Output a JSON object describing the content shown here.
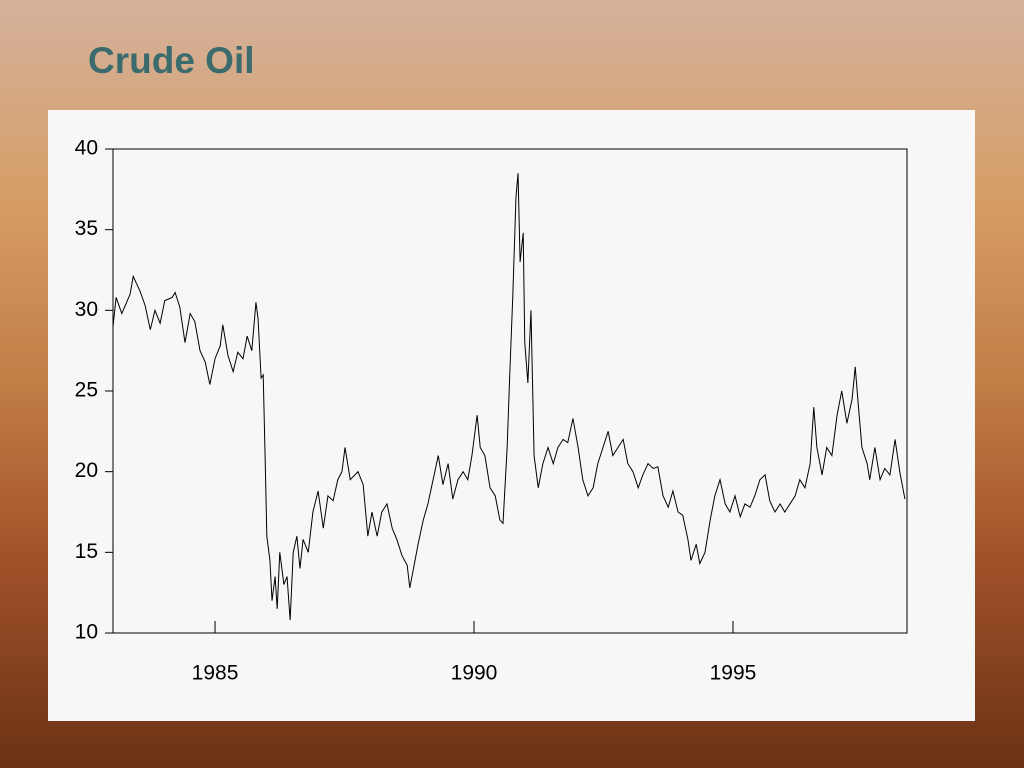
{
  "chart_data": {
    "type": "line",
    "title": "Crude Oil",
    "x": [
      1983.03,
      1983.09,
      1983.2,
      1983.36,
      1983.42,
      1983.55,
      1983.65,
      1983.75,
      1983.84,
      1983.94,
      1984.03,
      1984.17,
      1984.23,
      1984.32,
      1984.42,
      1984.52,
      1984.61,
      1984.71,
      1984.81,
      1984.9,
      1985.0,
      1985.1,
      1985.15,
      1985.25,
      1985.35,
      1985.44,
      1985.54,
      1985.62,
      1985.71,
      1985.79,
      1985.83,
      1985.89,
      1985.93,
      1985.97,
      1986.0,
      1986.06,
      1986.1,
      1986.16,
      1986.2,
      1986.25,
      1986.33,
      1986.39,
      1986.45,
      1986.51,
      1986.58,
      1986.64,
      1986.7,
      1986.8,
      1986.89,
      1986.99,
      1987.09,
      1987.18,
      1987.28,
      1987.37,
      1987.45,
      1987.51,
      1987.61,
      1987.7,
      1987.76,
      1987.86,
      1987.95,
      1988.03,
      1988.13,
      1988.22,
      1988.32,
      1988.42,
      1988.51,
      1988.61,
      1988.71,
      1988.76,
      1988.82,
      1988.92,
      1989.02,
      1989.11,
      1989.21,
      1989.31,
      1989.4,
      1989.5,
      1989.59,
      1989.69,
      1989.79,
      1989.88,
      1989.96,
      1990.06,
      1990.12,
      1990.21,
      1990.31,
      1990.41,
      1990.5,
      1990.56,
      1990.64,
      1990.69,
      1990.75,
      1990.81,
      1990.85,
      1990.89,
      1990.95,
      1990.98,
      1991.04,
      1991.1,
      1991.16,
      1991.24,
      1991.33,
      1991.43,
      1991.53,
      1991.62,
      1991.72,
      1991.81,
      1991.91,
      1992.01,
      1992.1,
      1992.2,
      1992.3,
      1992.39,
      1992.49,
      1992.59,
      1992.68,
      1992.78,
      1992.88,
      1992.97,
      1993.07,
      1993.17,
      1993.26,
      1993.36,
      1993.46,
      1993.55,
      1993.65,
      1993.75,
      1993.84,
      1993.94,
      1994.03,
      1994.13,
      1994.19,
      1994.29,
      1994.36,
      1994.46,
      1994.56,
      1994.65,
      1994.75,
      1994.85,
      1994.94,
      1995.04,
      1995.14,
      1995.23,
      1995.33,
      1995.42,
      1995.52,
      1995.62,
      1995.71,
      1995.81,
      1995.91,
      1996.0,
      1996.1,
      1996.2,
      1996.29,
      1996.39,
      1996.49,
      1996.56,
      1996.62,
      1996.72,
      1996.81,
      1996.91,
      1997.01,
      1997.1,
      1997.2,
      1997.3,
      1997.36,
      1997.41,
      1997.49,
      1997.59,
      1997.64,
      1997.74,
      1997.84,
      1997.93,
      1998.03,
      1998.13,
      1998.22,
      1998.32
    ],
    "series": [
      {
        "color": "#000000",
        "values": [
          29.0,
          30.8,
          29.8,
          31.0,
          32.1,
          31.2,
          30.3,
          28.8,
          30.0,
          29.2,
          30.6,
          30.8,
          31.1,
          30.2,
          28.0,
          29.8,
          29.3,
          27.5,
          26.8,
          25.4,
          27.0,
          27.8,
          29.1,
          27.2,
          26.2,
          27.4,
          27.0,
          28.4,
          27.5,
          30.5,
          29.5,
          25.8,
          26.0,
          20.5,
          16.0,
          14.5,
          12.0,
          13.5,
          11.5,
          15.0,
          13.0,
          13.5,
          10.8,
          15.0,
          16.0,
          14.0,
          15.8,
          15.0,
          17.5,
          18.8,
          16.5,
          18.5,
          18.2,
          19.5,
          20.0,
          21.5,
          19.5,
          19.8,
          20.0,
          19.2,
          16.0,
          17.5,
          16.0,
          17.5,
          18.0,
          16.5,
          15.8,
          14.8,
          14.2,
          12.8,
          13.8,
          15.5,
          17.0,
          18.0,
          19.5,
          21.0,
          19.2,
          20.5,
          18.3,
          19.5,
          20.0,
          19.5,
          21.0,
          23.5,
          21.5,
          21.0,
          19.0,
          18.5,
          17.0,
          16.8,
          21.5,
          26.0,
          31.0,
          37.0,
          38.5,
          33.0,
          34.8,
          28.0,
          25.5,
          30.0,
          21.0,
          19.0,
          20.5,
          21.5,
          20.5,
          21.5,
          22.0,
          21.8,
          23.3,
          21.5,
          19.5,
          18.5,
          19.0,
          20.5,
          21.5,
          22.5,
          21.0,
          21.5,
          22.0,
          20.5,
          20.0,
          19.0,
          19.8,
          20.5,
          20.2,
          20.3,
          18.5,
          17.8,
          18.8,
          17.5,
          17.3,
          15.8,
          14.5,
          15.5,
          14.3,
          15.0,
          17.0,
          18.5,
          19.5,
          18.0,
          17.5,
          18.5,
          17.2,
          18.0,
          17.8,
          18.5,
          19.5,
          19.8,
          18.2,
          17.5,
          18.0,
          17.5,
          18.0,
          18.5,
          19.5,
          19.0,
          20.5,
          24.0,
          21.5,
          19.8,
          21.5,
          21.0,
          23.5,
          25.0,
          23.0,
          24.5,
          26.5,
          24.5,
          21.5,
          20.5,
          19.5,
          21.5,
          19.5,
          20.2,
          19.8,
          22.0,
          20.0,
          18.3
        ]
      }
    ],
    "xlim": [
      1983.03,
      1998.36
    ],
    "xticks": [
      1985,
      1990,
      1995
    ],
    "ylim": [
      10,
      40
    ],
    "yticks": [
      10,
      15,
      20,
      25,
      30,
      35,
      40
    ]
  }
}
